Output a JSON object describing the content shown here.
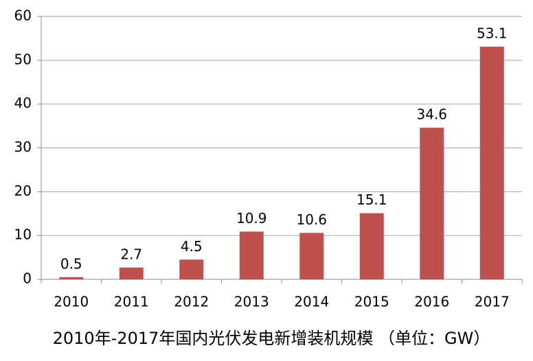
{
  "chart_data": {
    "type": "bar",
    "title": "2010年-2017年国内光伏发电新增装机规模 （单位：GW）",
    "categories": [
      "2010",
      "2011",
      "2012",
      "2013",
      "2014",
      "2015",
      "2016",
      "2017"
    ],
    "values": [
      0.5,
      2.7,
      4.5,
      10.9,
      10.6,
      15.1,
      34.6,
      53.1
    ],
    "color": "#c0504d",
    "ylim": [
      0,
      60
    ],
    "yticks": [
      0,
      10,
      20,
      30,
      40,
      50,
      60
    ],
    "grid": true
  }
}
